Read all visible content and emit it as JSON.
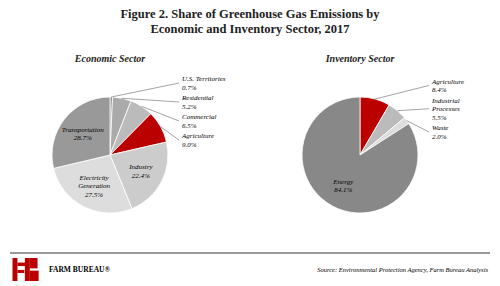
{
  "title": "Figure 2. Share of Greenhouse Gas Emissions by\nEconomic and Inventory Sector, 2017",
  "annotations": [
    "FARM BUREAU®",
    "Source: Environmental Protection Agency, Farm Bureau Analysis"
  ],
  "chart_data": [
    {
      "type": "pie",
      "title": "Economic Sector",
      "categories": [
        "U.S. Territories",
        "Residential",
        "Commercial",
        "Agriculture",
        "Industry",
        "Electricity\nGeneration",
        "Transportation"
      ],
      "values": [
        0.7,
        5.2,
        6.5,
        9.0,
        22.4,
        27.5,
        28.7
      ],
      "value_labels": [
        "0.7%",
        "5.2%",
        "6.5%",
        "9.0%",
        "22.4%",
        "27.5%",
        "28.7%"
      ],
      "colors": [
        "#888888",
        "#aaaaaa",
        "#bbbbbb",
        "#bb0000",
        "#cccccc",
        "#dddddd",
        "#999999"
      ],
      "data_labels": true
    },
    {
      "type": "pie",
      "title": "Inventory Sector",
      "categories": [
        "Agriculture",
        "Industrial\nProcesses",
        "Waste",
        "Energy"
      ],
      "values": [
        8.4,
        5.5,
        2.0,
        84.1
      ],
      "value_labels": [
        "8.4%",
        "5.5%",
        "2.0%",
        "84.1%"
      ],
      "colors": [
        "#bb0000",
        "#bbbbbb",
        "#dddddd",
        "#888888"
      ],
      "data_labels": true
    }
  ]
}
